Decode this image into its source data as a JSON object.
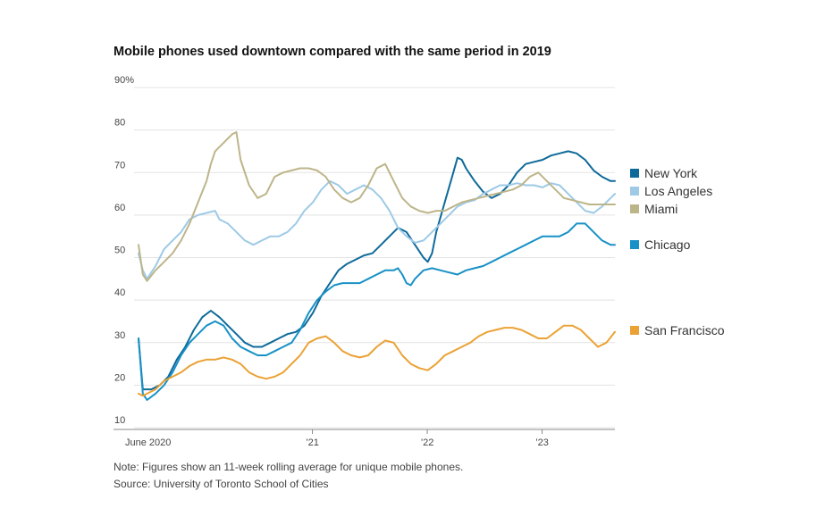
{
  "chart_data": {
    "type": "line",
    "title": "Mobile phones used downtown compared with the same period in 2019",
    "ylim": [
      10,
      90
    ],
    "y_ticks": [
      "90%",
      "80",
      "70",
      "60",
      "50",
      "40",
      "30",
      "20",
      "10"
    ],
    "x_ticks": [
      "June 2020",
      "’21",
      "’22",
      "’23"
    ],
    "grid": "horizontal",
    "legend_placement": "right",
    "series": [
      {
        "name": "New York",
        "color": "#0e6a9a",
        "points": [
          [
            0,
            31
          ],
          [
            1,
            19
          ],
          [
            3,
            19
          ],
          [
            5,
            20
          ],
          [
            7,
            22
          ],
          [
            9,
            26
          ],
          [
            11,
            29
          ],
          [
            13,
            33
          ],
          [
            15,
            36
          ],
          [
            17,
            37.5
          ],
          [
            19,
            36
          ],
          [
            21,
            34
          ],
          [
            23,
            32
          ],
          [
            25,
            30
          ],
          [
            27,
            29
          ],
          [
            29,
            29
          ],
          [
            31,
            30
          ],
          [
            33,
            31
          ],
          [
            35,
            32
          ],
          [
            37,
            32.5
          ],
          [
            39,
            34
          ],
          [
            41,
            37
          ],
          [
            43,
            41
          ],
          [
            45,
            44
          ],
          [
            47,
            47
          ],
          [
            49,
            48.5
          ],
          [
            51,
            49.5
          ],
          [
            53,
            50.5
          ],
          [
            55,
            51
          ],
          [
            57,
            53
          ],
          [
            59,
            55
          ],
          [
            61,
            57
          ],
          [
            63,
            56
          ],
          [
            65,
            53
          ],
          [
            67,
            50
          ],
          [
            68,
            49
          ],
          [
            69,
            51
          ],
          [
            70,
            56
          ],
          [
            72,
            63
          ],
          [
            74,
            70
          ],
          [
            75,
            73.5
          ],
          [
            76,
            73
          ],
          [
            77,
            71
          ],
          [
            79,
            68
          ],
          [
            81,
            65.5
          ],
          [
            83,
            64
          ],
          [
            85,
            65
          ],
          [
            87,
            67
          ],
          [
            89,
            70
          ],
          [
            91,
            72
          ],
          [
            93,
            72.5
          ],
          [
            95,
            73
          ],
          [
            97,
            74
          ],
          [
            99,
            74.5
          ],
          [
            101,
            75
          ],
          [
            103,
            74.5
          ],
          [
            105,
            73
          ],
          [
            107,
            70.5
          ],
          [
            109,
            69
          ],
          [
            111,
            68
          ],
          [
            112,
            68
          ]
        ]
      },
      {
        "name": "Los Angeles",
        "color": "#9ecae6",
        "points": [
          [
            0,
            51
          ],
          [
            1,
            47
          ],
          [
            2,
            45
          ],
          [
            4,
            48
          ],
          [
            6,
            52
          ],
          [
            8,
            54
          ],
          [
            10,
            56
          ],
          [
            12,
            59
          ],
          [
            14,
            60
          ],
          [
            16,
            60.5
          ],
          [
            18,
            61
          ],
          [
            19,
            59
          ],
          [
            21,
            58
          ],
          [
            23,
            56
          ],
          [
            25,
            54
          ],
          [
            27,
            53
          ],
          [
            29,
            54
          ],
          [
            31,
            55
          ],
          [
            33,
            55
          ],
          [
            35,
            56
          ],
          [
            37,
            58
          ],
          [
            39,
            61
          ],
          [
            41,
            63
          ],
          [
            43,
            66
          ],
          [
            45,
            68
          ],
          [
            47,
            67
          ],
          [
            49,
            65
          ],
          [
            51,
            66
          ],
          [
            53,
            67
          ],
          [
            55,
            66
          ],
          [
            57,
            64
          ],
          [
            59,
            61
          ],
          [
            61,
            57
          ],
          [
            63,
            55
          ],
          [
            65,
            53.5
          ],
          [
            67,
            54
          ],
          [
            69,
            56
          ],
          [
            71,
            58
          ],
          [
            73,
            60
          ],
          [
            75,
            62
          ],
          [
            77,
            63
          ],
          [
            79,
            63.5
          ],
          [
            81,
            65
          ],
          [
            83,
            66
          ],
          [
            85,
            67
          ],
          [
            87,
            67
          ],
          [
            89,
            67.5
          ],
          [
            91,
            67
          ],
          [
            93,
            67
          ],
          [
            95,
            66.5
          ],
          [
            97,
            67.5
          ],
          [
            99,
            67
          ],
          [
            101,
            65
          ],
          [
            103,
            63
          ],
          [
            105,
            61
          ],
          [
            107,
            60.5
          ],
          [
            109,
            62
          ],
          [
            111,
            64
          ],
          [
            112,
            65
          ]
        ]
      },
      {
        "name": "Miami",
        "color": "#bdb58a",
        "points": [
          [
            0,
            53
          ],
          [
            1,
            46
          ],
          [
            2,
            44.5
          ],
          [
            4,
            47
          ],
          [
            6,
            49
          ],
          [
            8,
            51
          ],
          [
            10,
            54
          ],
          [
            12,
            58
          ],
          [
            14,
            63
          ],
          [
            16,
            68
          ],
          [
            17,
            72
          ],
          [
            18,
            75
          ],
          [
            20,
            77
          ],
          [
            22,
            79
          ],
          [
            23,
            79.5
          ],
          [
            24,
            73
          ],
          [
            26,
            67
          ],
          [
            28,
            64
          ],
          [
            30,
            65
          ],
          [
            32,
            69
          ],
          [
            34,
            70
          ],
          [
            36,
            70.5
          ],
          [
            38,
            71
          ],
          [
            40,
            71
          ],
          [
            42,
            70.5
          ],
          [
            44,
            69
          ],
          [
            46,
            66
          ],
          [
            48,
            64
          ],
          [
            50,
            63
          ],
          [
            52,
            64
          ],
          [
            54,
            67
          ],
          [
            56,
            71
          ],
          [
            58,
            72
          ],
          [
            60,
            68
          ],
          [
            62,
            64
          ],
          [
            64,
            62
          ],
          [
            66,
            61
          ],
          [
            68,
            60.5
          ],
          [
            70,
            61
          ],
          [
            72,
            61
          ],
          [
            74,
            62
          ],
          [
            76,
            63
          ],
          [
            78,
            63.5
          ],
          [
            80,
            64
          ],
          [
            82,
            64.5
          ],
          [
            84,
            65
          ],
          [
            86,
            65.5
          ],
          [
            88,
            66
          ],
          [
            90,
            67
          ],
          [
            92,
            69
          ],
          [
            94,
            70
          ],
          [
            96,
            68
          ],
          [
            98,
            66
          ],
          [
            100,
            64
          ],
          [
            102,
            63.5
          ],
          [
            104,
            63
          ],
          [
            106,
            62.5
          ],
          [
            108,
            62.5
          ],
          [
            110,
            62.5
          ],
          [
            112,
            62.5
          ]
        ]
      },
      {
        "name": "Chicago",
        "color": "#1891c6",
        "points": [
          [
            0,
            31
          ],
          [
            1,
            18
          ],
          [
            2,
            16.5
          ],
          [
            4,
            18
          ],
          [
            6,
            20
          ],
          [
            8,
            23
          ],
          [
            10,
            27
          ],
          [
            12,
            30
          ],
          [
            14,
            32
          ],
          [
            16,
            34
          ],
          [
            18,
            35
          ],
          [
            20,
            34
          ],
          [
            22,
            31
          ],
          [
            24,
            29
          ],
          [
            26,
            28
          ],
          [
            28,
            27
          ],
          [
            30,
            27
          ],
          [
            32,
            28
          ],
          [
            34,
            29
          ],
          [
            36,
            30
          ],
          [
            38,
            33
          ],
          [
            40,
            37
          ],
          [
            42,
            40
          ],
          [
            44,
            42
          ],
          [
            46,
            43.5
          ],
          [
            48,
            44
          ],
          [
            50,
            44
          ],
          [
            52,
            44
          ],
          [
            54,
            45
          ],
          [
            56,
            46
          ],
          [
            58,
            47
          ],
          [
            60,
            47
          ],
          [
            61,
            47.5
          ],
          [
            62,
            46
          ],
          [
            63,
            44
          ],
          [
            64,
            43.5
          ],
          [
            65,
            45
          ],
          [
            67,
            47
          ],
          [
            69,
            47.5
          ],
          [
            71,
            47
          ],
          [
            73,
            46.5
          ],
          [
            75,
            46
          ],
          [
            77,
            47
          ],
          [
            79,
            47.5
          ],
          [
            81,
            48
          ],
          [
            83,
            49
          ],
          [
            85,
            50
          ],
          [
            87,
            51
          ],
          [
            89,
            52
          ],
          [
            91,
            53
          ],
          [
            93,
            54
          ],
          [
            95,
            55
          ],
          [
            97,
            55
          ],
          [
            99,
            55
          ],
          [
            101,
            56
          ],
          [
            103,
            58
          ],
          [
            105,
            58
          ],
          [
            107,
            56
          ],
          [
            109,
            54
          ],
          [
            111,
            53
          ],
          [
            112,
            53
          ]
        ]
      },
      {
        "name": "San Francisco",
        "color": "#eba235",
        "points": [
          [
            0,
            18
          ],
          [
            1,
            17.5
          ],
          [
            2,
            18
          ],
          [
            4,
            19
          ],
          [
            6,
            21
          ],
          [
            8,
            22
          ],
          [
            10,
            23
          ],
          [
            12,
            24.5
          ],
          [
            14,
            25.5
          ],
          [
            16,
            26
          ],
          [
            18,
            26
          ],
          [
            20,
            26.5
          ],
          [
            22,
            26
          ],
          [
            24,
            25
          ],
          [
            26,
            23
          ],
          [
            28,
            22
          ],
          [
            30,
            21.5
          ],
          [
            32,
            22
          ],
          [
            34,
            23
          ],
          [
            36,
            25
          ],
          [
            38,
            27
          ],
          [
            40,
            30
          ],
          [
            42,
            31
          ],
          [
            44,
            31.5
          ],
          [
            46,
            30
          ],
          [
            48,
            28
          ],
          [
            50,
            27
          ],
          [
            52,
            26.5
          ],
          [
            54,
            27
          ],
          [
            56,
            29
          ],
          [
            58,
            30.5
          ],
          [
            60,
            30
          ],
          [
            62,
            27
          ],
          [
            64,
            25
          ],
          [
            66,
            24
          ],
          [
            68,
            23.5
          ],
          [
            70,
            25
          ],
          [
            72,
            27
          ],
          [
            74,
            28
          ],
          [
            76,
            29
          ],
          [
            78,
            30
          ],
          [
            80,
            31.5
          ],
          [
            82,
            32.5
          ],
          [
            84,
            33
          ],
          [
            86,
            33.5
          ],
          [
            88,
            33.5
          ],
          [
            90,
            33
          ],
          [
            92,
            32
          ],
          [
            94,
            31
          ],
          [
            96,
            31
          ],
          [
            98,
            32.5
          ],
          [
            100,
            34
          ],
          [
            102,
            34
          ],
          [
            104,
            33
          ],
          [
            106,
            31
          ],
          [
            108,
            29
          ],
          [
            110,
            30
          ],
          [
            112,
            32.5
          ]
        ]
      }
    ]
  },
  "note": "Note: Figures show an 11-week rolling average for unique mobile phones.",
  "source": "Source: University of Toronto School of Cities"
}
